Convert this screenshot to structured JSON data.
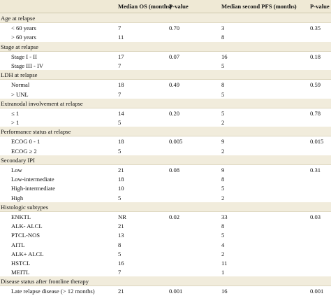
{
  "header": {
    "col_label": "",
    "col_os": "Median OS (months)",
    "col_p1": "P-value",
    "col_pfs": "Median second PFS (months)",
    "col_p2": "P-value"
  },
  "rows": [
    {
      "type": "section",
      "label": "Age at relapse",
      "os": "",
      "p1": "",
      "pfs": "",
      "p2": ""
    },
    {
      "type": "sub",
      "label": "< 60 years",
      "os": "7",
      "p1": "0.70",
      "pfs": "3",
      "p2": "0.35"
    },
    {
      "type": "sub",
      "label": "> 60 years",
      "os": "11",
      "p1": "",
      "pfs": "8",
      "p2": ""
    },
    {
      "type": "section",
      "label": "Stage at relapse",
      "os": "",
      "p1": "",
      "pfs": "",
      "p2": ""
    },
    {
      "type": "sub",
      "label": "Stage I - II",
      "os": "17",
      "p1": "0.07",
      "pfs": "16",
      "p2": "0.18"
    },
    {
      "type": "sub",
      "label": "Stage III - IV",
      "os": "7",
      "p1": "",
      "pfs": "5",
      "p2": ""
    },
    {
      "type": "section",
      "label": "LDH at relapse",
      "os": "",
      "p1": "",
      "pfs": "",
      "p2": ""
    },
    {
      "type": "sub",
      "label": "Normal",
      "os": "18",
      "p1": "0.49",
      "pfs": "8",
      "p2": "0.59"
    },
    {
      "type": "sub",
      "label": "> UNL",
      "os": "7",
      "p1": "",
      "pfs": "5",
      "p2": ""
    },
    {
      "type": "section",
      "label": "Extranodal involvement at relapse",
      "os": "",
      "p1": "",
      "pfs": "",
      "p2": ""
    },
    {
      "type": "sub",
      "label": "≤ 1",
      "os": "14",
      "p1": "0.20",
      "pfs": "5",
      "p2": "0.78"
    },
    {
      "type": "sub",
      "label": "> 1",
      "os": "5",
      "p1": "",
      "pfs": "2",
      "p2": ""
    },
    {
      "type": "section",
      "label": "Performance status at relapse",
      "os": "",
      "p1": "",
      "pfs": "",
      "p2": ""
    },
    {
      "type": "sub",
      "label": "ECOG 0 - 1",
      "os": "18",
      "p1": "0.005",
      "pfs": "9",
      "p2": "0.015"
    },
    {
      "type": "sub",
      "label": "ECOG ≥ 2",
      "os": "5",
      "p1": "",
      "pfs": "2",
      "p2": ""
    },
    {
      "type": "section",
      "label": "Secondary IPI",
      "os": "",
      "p1": "",
      "pfs": "",
      "p2": ""
    },
    {
      "type": "sub",
      "label": "Low",
      "os": "21",
      "p1": "0.08",
      "pfs": "9",
      "p2": "0.31"
    },
    {
      "type": "sub",
      "label": "Low-intermediate",
      "os": "18",
      "p1": "",
      "pfs": "8",
      "p2": ""
    },
    {
      "type": "sub",
      "label": "High-intermediate",
      "os": "10",
      "p1": "",
      "pfs": "5",
      "p2": ""
    },
    {
      "type": "sub",
      "label": "High",
      "os": "5",
      "p1": "",
      "pfs": "2",
      "p2": ""
    },
    {
      "type": "section",
      "label": "Histologic subtypes",
      "os": "",
      "p1": "",
      "pfs": "",
      "p2": ""
    },
    {
      "type": "sub",
      "label": "ENKTL",
      "os": "NR",
      "p1": "0.02",
      "pfs": "33",
      "p2": "0.03"
    },
    {
      "type": "sub",
      "label": "ALK- ALCL",
      "os": "21",
      "p1": "",
      "pfs": "8",
      "p2": ""
    },
    {
      "type": "sub",
      "label": "PTCL-NOS",
      "os": "13",
      "p1": "",
      "pfs": "5",
      "p2": ""
    },
    {
      "type": "sub",
      "label": "AITL",
      "os": "8",
      "p1": "",
      "pfs": "4",
      "p2": ""
    },
    {
      "type": "sub",
      "label": "ALK+ ALCL",
      "os": "5",
      "p1": "",
      "pfs": "2",
      "p2": ""
    },
    {
      "type": "sub",
      "label": "HSTCL",
      "os": "16",
      "p1": "",
      "pfs": "11",
      "p2": ""
    },
    {
      "type": "sub",
      "label": "MEITL",
      "os": "7",
      "p1": "",
      "pfs": "1",
      "p2": ""
    },
    {
      "type": "section",
      "label": "Disease status after frontline therapy",
      "os": "",
      "p1": "",
      "pfs": "",
      "p2": ""
    },
    {
      "type": "sub",
      "label": "Late relapse disease (> 12 months)",
      "os": "21",
      "p1": "0.001",
      "pfs": "16",
      "p2": "0.001"
    }
  ]
}
